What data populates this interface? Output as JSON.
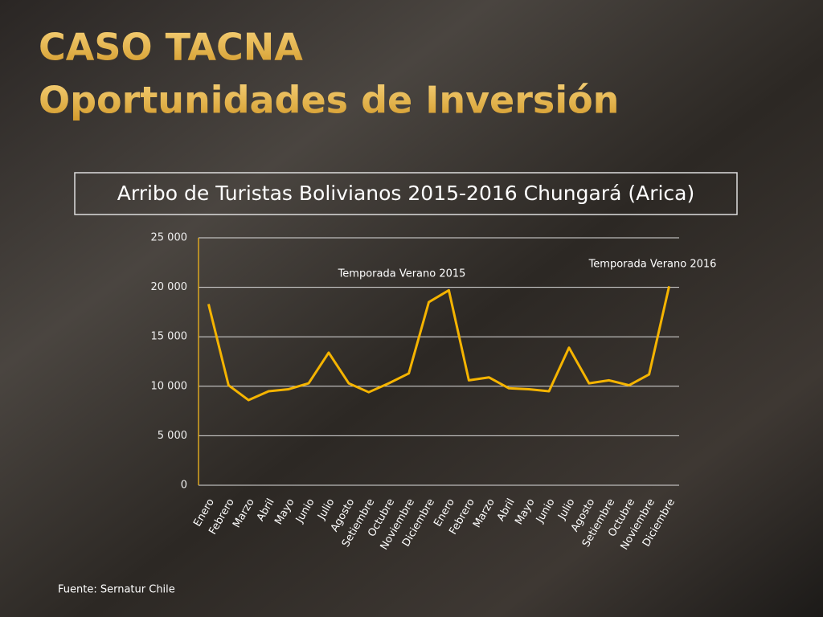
{
  "slide": {
    "title_lines": [
      "CASO TACNA",
      "Oportunidades de Inversión"
    ],
    "source": "Fuente: Sernatur Chile"
  },
  "chart_data": {
    "type": "line",
    "title": "Arribo de Turistas Bolivianos 2015-2016 Chungará (Arica)",
    "categories": [
      "Enero",
      "Febrero",
      "Marzo",
      "Abril",
      "Mayo",
      "Junio",
      "Julio",
      "Agosto",
      "Setiembre",
      "Octubre",
      "Noviembre",
      "Diciembre",
      "Enero",
      "Febrero",
      "Marzo",
      "Abril",
      "Mayo",
      "Junio",
      "Julio",
      "Agosto",
      "Setiembre",
      "Octubre",
      "Noviembre",
      "Diciembre"
    ],
    "values": [
      18300,
      10100,
      8600,
      9500,
      9700,
      10300,
      13400,
      10300,
      9400,
      10300,
      11300,
      18500,
      19700,
      10600,
      10900,
      9800,
      9700,
      9500,
      13900,
      10300,
      10600,
      10100,
      11200,
      20100
    ],
    "color": "#f5b400",
    "ylim": [
      0,
      25000
    ],
    "yticks": [
      0,
      {
        "value": 5000,
        "label": "5 000"
      },
      {
        "value": 10000,
        "label": "10 000"
      },
      {
        "value": 15000,
        "label": "15 000"
      },
      {
        "value": 20000,
        "label": "20 000"
      },
      {
        "value": 25000,
        "label": "25 000"
      }
    ],
    "grid": true,
    "annotations": [
      "Temporada Verano 2015",
      "Temporada Verano 2016"
    ]
  }
}
